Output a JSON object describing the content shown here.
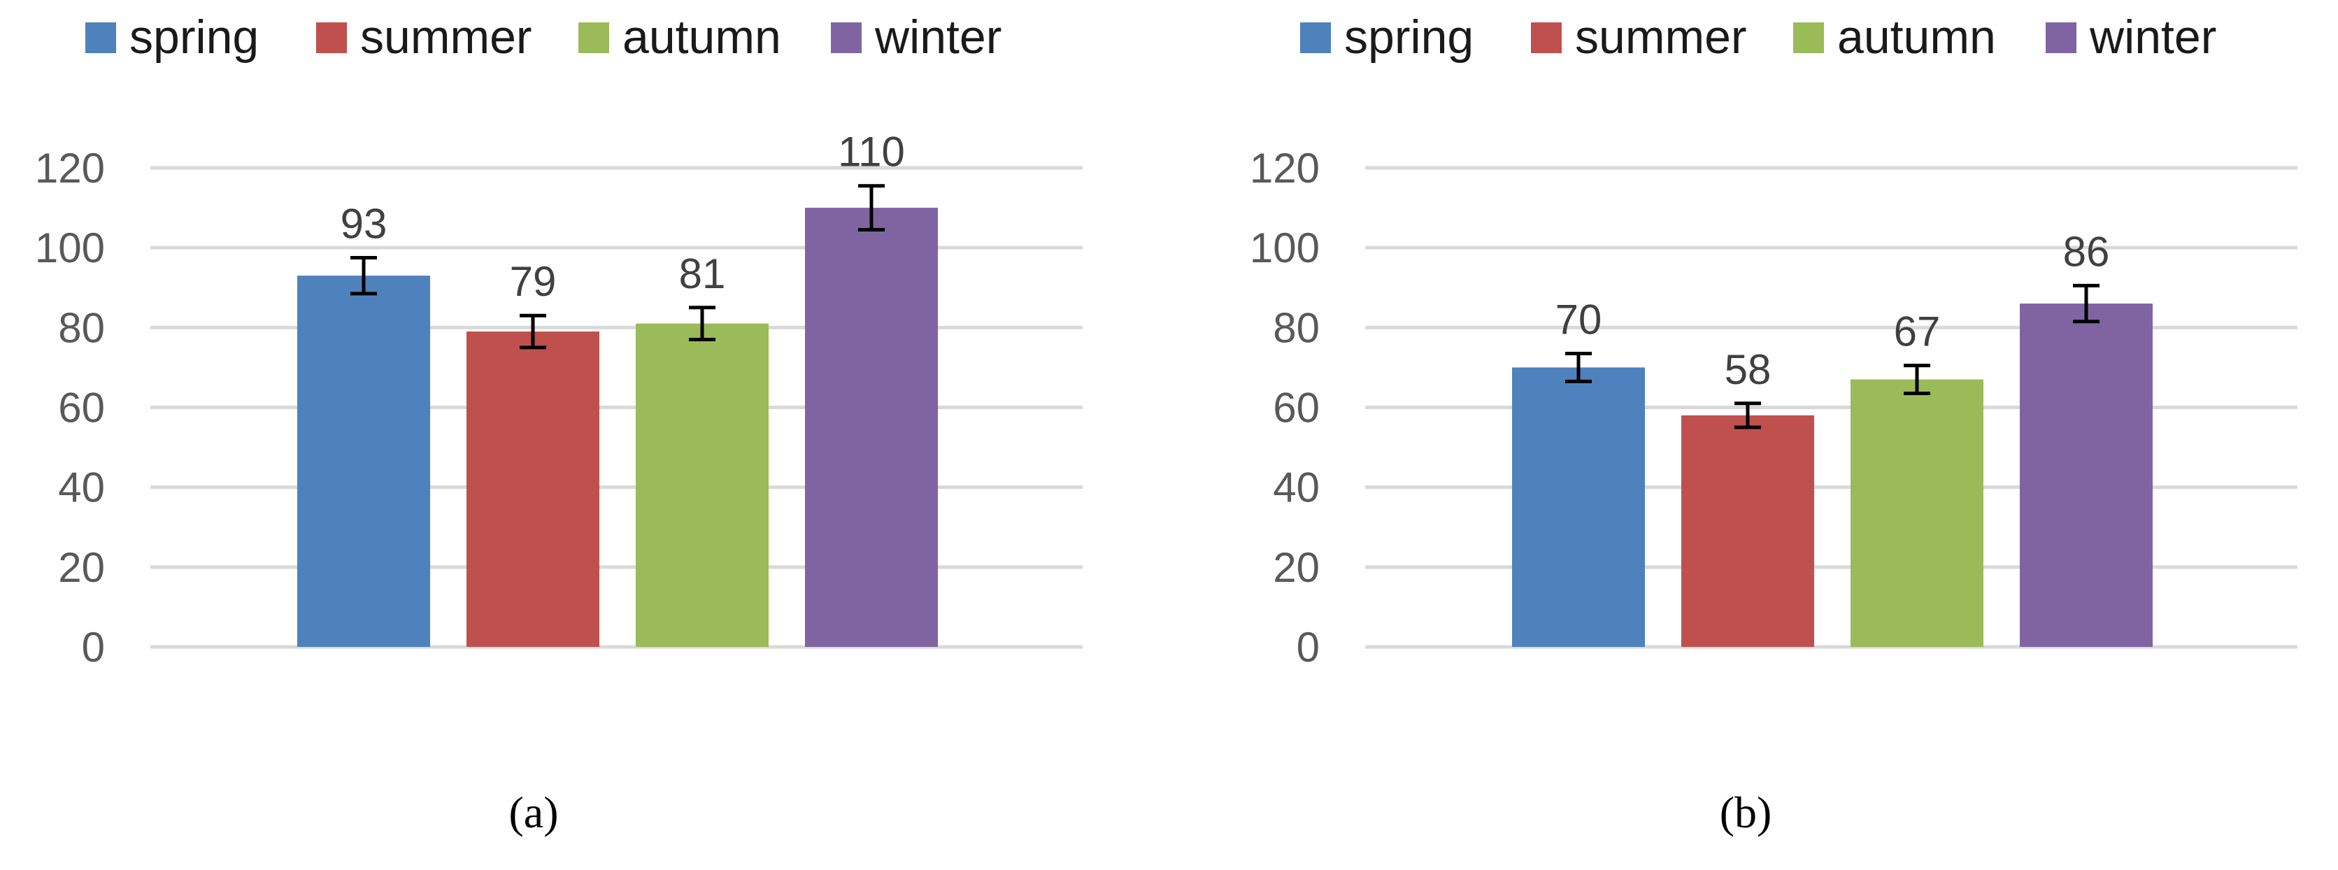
{
  "chart_data": [
    {
      "type": "bar",
      "categories": [
        "spring",
        "summer",
        "autumn",
        "winter"
      ],
      "values": [
        93,
        79,
        81,
        110
      ],
      "error": [
        4.5,
        4,
        4,
        5.5
      ],
      "ylim": [
        0,
        120
      ],
      "yticks": [
        "0",
        "20",
        "40",
        "60",
        "80",
        "100",
        "120"
      ],
      "data_labels": [
        "93",
        "79",
        "81",
        "110"
      ],
      "legend": {
        "placement": "top",
        "entries": [
          "spring",
          "summer",
          "autumn",
          "winter"
        ]
      },
      "colors": [
        "#4f81bd",
        "#c0504d",
        "#9bbb59",
        "#8064a2"
      ],
      "grid": true,
      "caption": "(a)"
    },
    {
      "type": "bar",
      "categories": [
        "spring",
        "summer",
        "autumn",
        "winter"
      ],
      "values": [
        70,
        58,
        67,
        86
      ],
      "error": [
        3.5,
        3,
        3.5,
        4.5
      ],
      "ylim": [
        0,
        120
      ],
      "yticks": [
        "0",
        "20",
        "40",
        "60",
        "80",
        "100",
        "120"
      ],
      "data_labels": [
        "70",
        "58",
        "67",
        "86"
      ],
      "legend": {
        "placement": "top",
        "entries": [
          "spring",
          "summer",
          "autumn",
          "winter"
        ]
      },
      "colors": [
        "#4f81bd",
        "#c0504d",
        "#9bbb59",
        "#8064a2"
      ],
      "grid": true,
      "caption": "(b)"
    }
  ]
}
